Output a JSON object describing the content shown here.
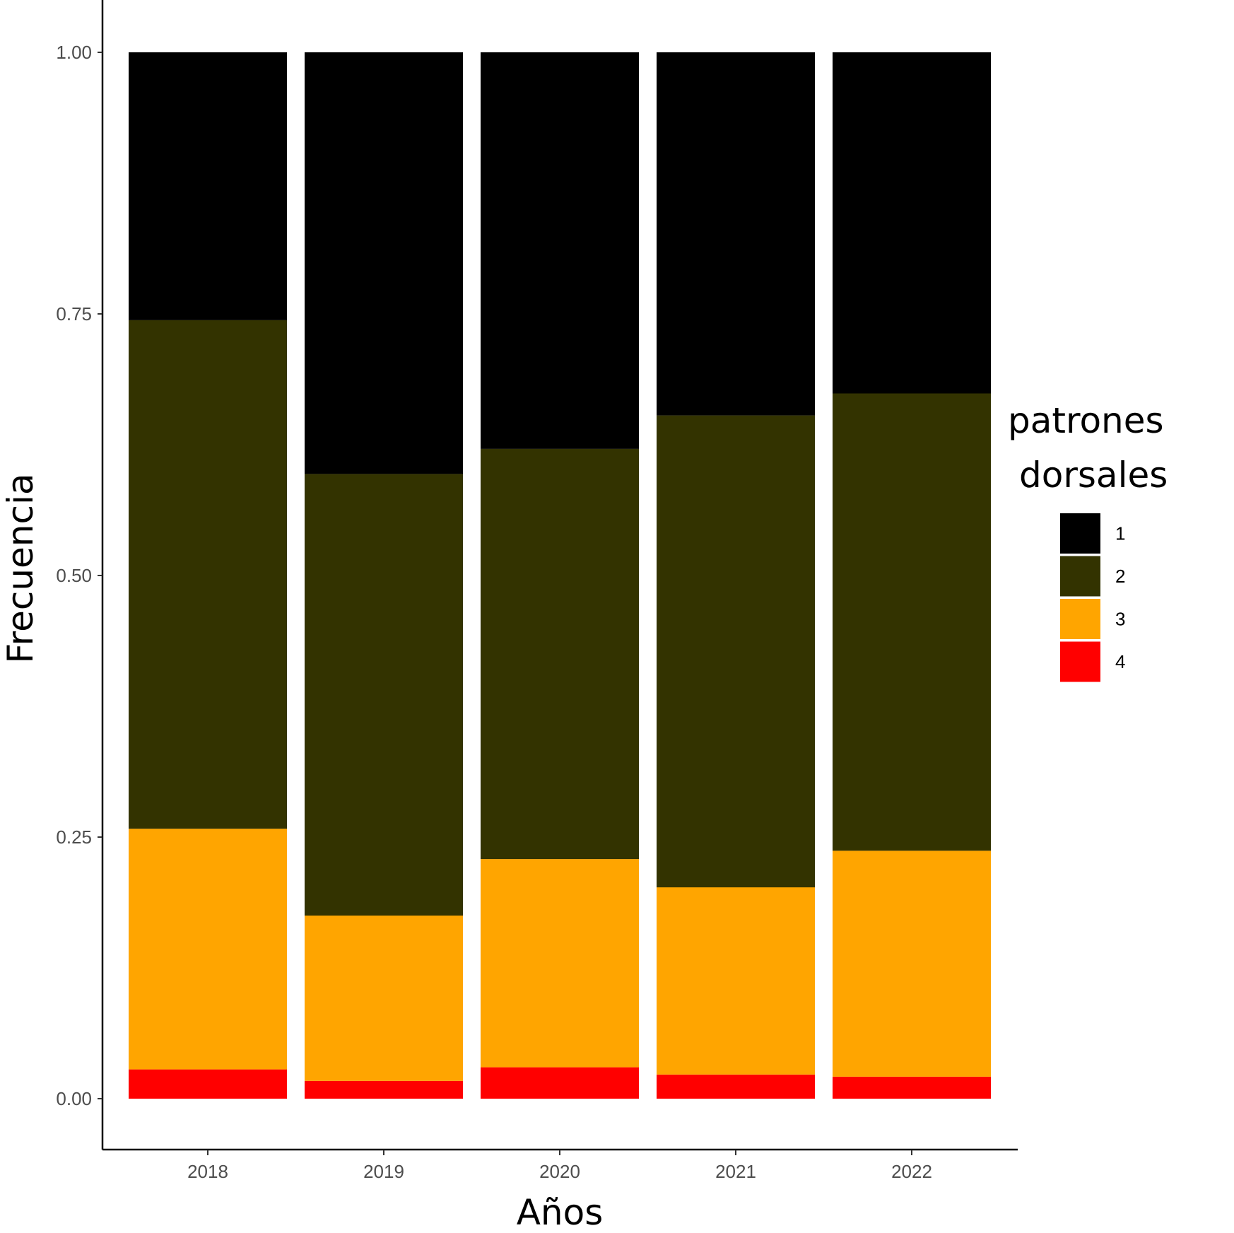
{
  "chart_data": {
    "type": "bar",
    "stacked": true,
    "categories": [
      "2018",
      "2019",
      "2020",
      "2021",
      "2022"
    ],
    "series": [
      {
        "name": "4",
        "color": "#FF0000",
        "values": [
          0.028,
          0.017,
          0.03,
          0.023,
          0.021
        ]
      },
      {
        "name": "3",
        "color": "#FFA500",
        "values": [
          0.23,
          0.158,
          0.199,
          0.179,
          0.216
        ]
      },
      {
        "name": "2",
        "color": "#333300",
        "values": [
          0.486,
          0.422,
          0.392,
          0.451,
          0.437
        ]
      },
      {
        "name": "1",
        "color": "#000000",
        "values": [
          0.256,
          0.403,
          0.379,
          0.347,
          0.326
        ]
      }
    ],
    "xlabel": "Años",
    "ylabel": "Frecuencia",
    "ylim": [
      0,
      1
    ],
    "yticks": [
      "0.00",
      "0.25",
      "0.50",
      "0.75",
      "1.00"
    ],
    "legend": {
      "title_lines": [
        "patrones",
        "dorsales"
      ],
      "entries": [
        "1",
        "2",
        "3",
        "4"
      ],
      "placement": "right"
    },
    "grid": false
  }
}
